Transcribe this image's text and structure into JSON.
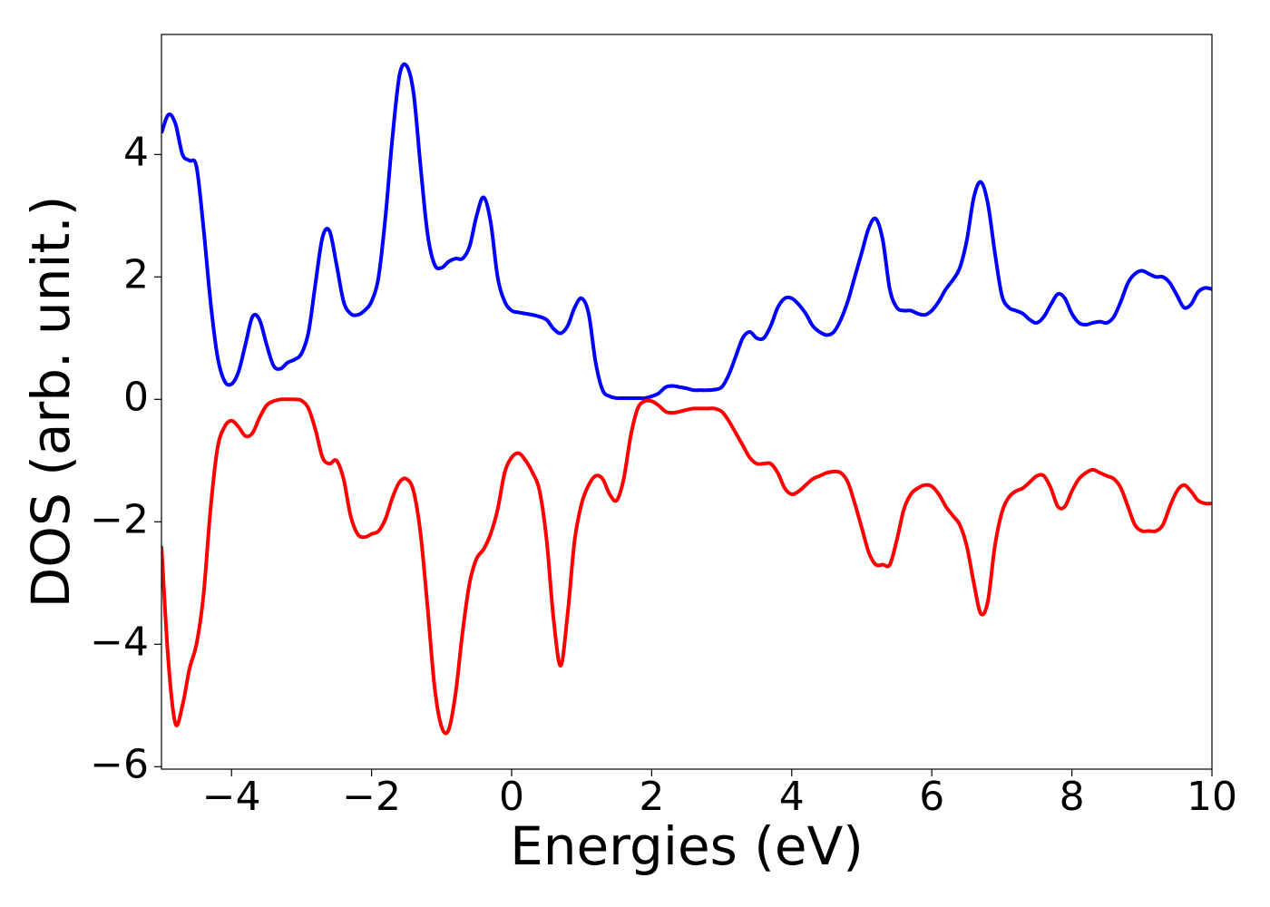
{
  "chart_data": {
    "type": "line",
    "xlabel": "Energies (eV)",
    "ylabel": "DOS (arb. unit.)",
    "xlim": [
      -5,
      10
    ],
    "ylim": [
      -6.04,
      5.96
    ],
    "xticks": [
      {
        "value": -4,
        "label": "−4"
      },
      {
        "value": -2,
        "label": "−2"
      },
      0,
      2,
      4,
      6,
      8,
      10
    ],
    "yticks": [
      {
        "value": -6,
        "label": "−6"
      },
      {
        "value": -4,
        "label": "−4"
      },
      {
        "value": -2,
        "label": "−2"
      },
      0,
      2,
      4
    ],
    "grid": false,
    "x": [
      -5,
      -4.9,
      -4.8,
      -4.7,
      -4.6,
      -4.5,
      -4.4,
      -4.3,
      -4.2,
      -4.1,
      -4,
      -3.9,
      -3.8,
      -3.7,
      -3.6,
      -3.5,
      -3.4,
      -3.3,
      -3.2,
      -3.1,
      -3,
      -2.9,
      -2.8,
      -2.7,
      -2.6,
      -2.5,
      -2.4,
      -2.3,
      -2.2,
      -2.1,
      -2,
      -1.9,
      -1.8,
      -1.7,
      -1.6,
      -1.5,
      -1.4,
      -1.3,
      -1.2,
      -1.1,
      -1,
      -0.9,
      -0.8,
      -0.7,
      -0.6,
      -0.5,
      -0.4,
      -0.3,
      -0.2,
      -0.1,
      0,
      0.1,
      0.2,
      0.3,
      0.4,
      0.5,
      0.6,
      0.7,
      0.8,
      0.9,
      1,
      1.1,
      1.2,
      1.3,
      1.4,
      1.5,
      1.6,
      1.7,
      1.8,
      1.9,
      2,
      2.1,
      2.2,
      2.3,
      2.4,
      2.5,
      2.6,
      2.7,
      2.8,
      2.9,
      3,
      3.1,
      3.2,
      3.3,
      3.4,
      3.5,
      3.6,
      3.7,
      3.8,
      3.9,
      4,
      4.1,
      4.2,
      4.3,
      4.4,
      4.5,
      4.6,
      4.7,
      4.8,
      4.9,
      5,
      5.1,
      5.2,
      5.3,
      5.4,
      5.5,
      5.6,
      5.7,
      5.8,
      5.9,
      6,
      6.1,
      6.2,
      6.3,
      6.4,
      6.5,
      6.6,
      6.7,
      6.8,
      6.9,
      7,
      7.1,
      7.2,
      7.3,
      7.4,
      7.5,
      7.6,
      7.7,
      7.8,
      7.9,
      8,
      8.1,
      8.2,
      8.3,
      8.4,
      8.5,
      8.6,
      8.7,
      8.8,
      8.9,
      9,
      9.1,
      9.2,
      9.3,
      9.4,
      9.5,
      9.6,
      9.7,
      9.8,
      9.9,
      10
    ],
    "series": [
      {
        "color": "#0000ff",
        "values": [
          4.35,
          4.65,
          4.5,
          4.0,
          3.9,
          3.8,
          2.8,
          1.6,
          0.7,
          0.3,
          0.25,
          0.45,
          0.9,
          1.35,
          1.3,
          0.9,
          0.55,
          0.5,
          0.6,
          0.65,
          0.75,
          1.1,
          1.9,
          2.65,
          2.75,
          2.2,
          1.6,
          1.4,
          1.38,
          1.45,
          1.6,
          2.0,
          3.0,
          4.3,
          5.3,
          5.45,
          5.0,
          3.8,
          2.7,
          2.2,
          2.15,
          2.25,
          2.3,
          2.3,
          2.5,
          3.0,
          3.3,
          2.9,
          2.0,
          1.6,
          1.45,
          1.42,
          1.4,
          1.38,
          1.35,
          1.3,
          1.15,
          1.08,
          1.2,
          1.5,
          1.65,
          1.4,
          0.6,
          0.15,
          0.05,
          0.02,
          0.02,
          0.02,
          0.02,
          0.02,
          0.05,
          0.1,
          0.2,
          0.22,
          0.2,
          0.18,
          0.15,
          0.15,
          0.15,
          0.16,
          0.2,
          0.4,
          0.7,
          1.0,
          1.1,
          1.0,
          1.0,
          1.2,
          1.5,
          1.65,
          1.65,
          1.55,
          1.4,
          1.2,
          1.1,
          1.05,
          1.1,
          1.3,
          1.6,
          2.0,
          2.4,
          2.8,
          2.95,
          2.6,
          1.8,
          1.5,
          1.45,
          1.45,
          1.4,
          1.38,
          1.45,
          1.6,
          1.8,
          1.95,
          2.15,
          2.6,
          3.3,
          3.55,
          3.2,
          2.4,
          1.7,
          1.5,
          1.45,
          1.4,
          1.3,
          1.25,
          1.35,
          1.55,
          1.72,
          1.65,
          1.4,
          1.25,
          1.22,
          1.25,
          1.27,
          1.25,
          1.35,
          1.6,
          1.9,
          2.05,
          2.1,
          2.05,
          2.0,
          2.0,
          1.9,
          1.7,
          1.5,
          1.55,
          1.75,
          1.82,
          1.8
        ]
      },
      {
        "color": "#ff0000",
        "values": [
          -2.4,
          -4.3,
          -5.3,
          -5.0,
          -4.4,
          -4.0,
          -3.2,
          -1.8,
          -0.8,
          -0.45,
          -0.35,
          -0.45,
          -0.6,
          -0.55,
          -0.3,
          -0.1,
          -0.03,
          0.0,
          0.0,
          0.0,
          -0.02,
          -0.15,
          -0.5,
          -0.95,
          -1.05,
          -1.0,
          -1.3,
          -1.9,
          -2.2,
          -2.25,
          -2.2,
          -2.15,
          -1.95,
          -1.6,
          -1.35,
          -1.3,
          -1.5,
          -2.2,
          -3.4,
          -4.7,
          -5.35,
          -5.4,
          -4.8,
          -3.8,
          -3.0,
          -2.6,
          -2.45,
          -2.2,
          -1.8,
          -1.2,
          -0.95,
          -0.88,
          -1.0,
          -1.2,
          -1.5,
          -2.3,
          -3.6,
          -4.35,
          -3.5,
          -2.3,
          -1.7,
          -1.4,
          -1.25,
          -1.3,
          -1.55,
          -1.65,
          -1.3,
          -0.6,
          -0.15,
          -0.03,
          -0.03,
          -0.1,
          -0.2,
          -0.22,
          -0.2,
          -0.17,
          -0.15,
          -0.15,
          -0.15,
          -0.15,
          -0.2,
          -0.35,
          -0.55,
          -0.75,
          -0.95,
          -1.05,
          -1.05,
          -1.05,
          -1.2,
          -1.45,
          -1.55,
          -1.5,
          -1.4,
          -1.3,
          -1.25,
          -1.2,
          -1.18,
          -1.2,
          -1.35,
          -1.7,
          -2.1,
          -2.5,
          -2.7,
          -2.7,
          -2.7,
          -2.3,
          -1.8,
          -1.55,
          -1.45,
          -1.4,
          -1.42,
          -1.55,
          -1.75,
          -1.9,
          -2.05,
          -2.4,
          -3.0,
          -3.5,
          -3.3,
          -2.4,
          -1.85,
          -1.6,
          -1.5,
          -1.45,
          -1.35,
          -1.25,
          -1.25,
          -1.45,
          -1.75,
          -1.75,
          -1.5,
          -1.3,
          -1.2,
          -1.15,
          -1.2,
          -1.25,
          -1.3,
          -1.45,
          -1.75,
          -2.05,
          -2.15,
          -2.15,
          -2.15,
          -2.05,
          -1.75,
          -1.5,
          -1.4,
          -1.5,
          -1.65,
          -1.7,
          -1.7
        ]
      }
    ]
  }
}
